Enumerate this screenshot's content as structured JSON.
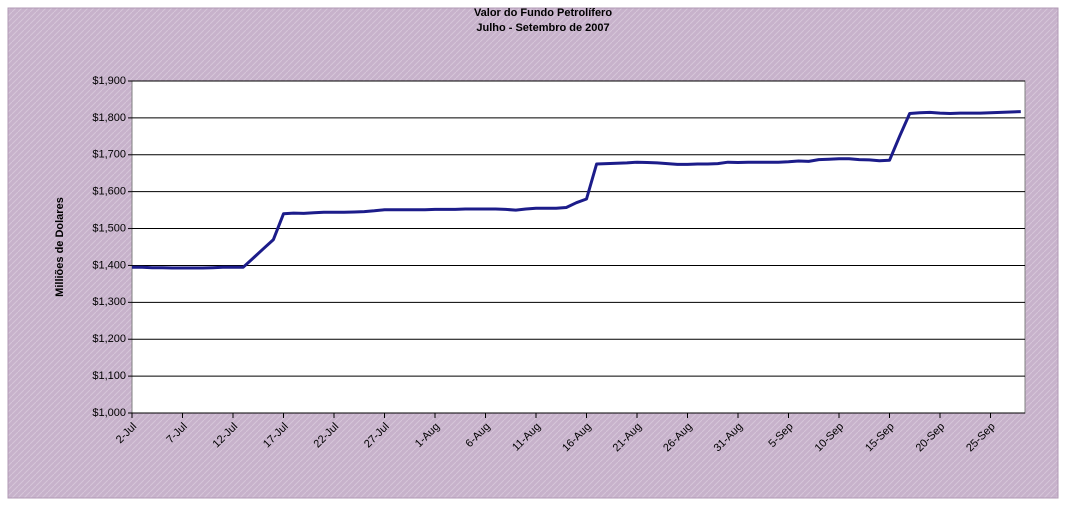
{
  "chart_data": {
    "type": "line",
    "title": "Valor do Fundo Petrolífero",
    "subtitle": "Julho - Setembro de 2007",
    "y_label": "Milliões de Dolares",
    "categories": [
      "2-Jul",
      null,
      null,
      null,
      null,
      "7-Jul",
      null,
      null,
      null,
      null,
      "12-Jul",
      null,
      null,
      null,
      null,
      "17-Jul",
      null,
      null,
      null,
      null,
      "22-Jul",
      null,
      null,
      null,
      null,
      "27-Jul",
      null,
      null,
      null,
      null,
      "1-Aug",
      null,
      null,
      null,
      null,
      "6-Aug",
      null,
      null,
      null,
      null,
      "11-Aug",
      null,
      null,
      null,
      null,
      "16-Aug",
      null,
      null,
      null,
      null,
      "21-Aug",
      null,
      null,
      null,
      null,
      "26-Aug",
      null,
      null,
      null,
      null,
      "31-Aug",
      null,
      null,
      null,
      null,
      "5-Sep",
      null,
      null,
      null,
      null,
      "10-Sep",
      null,
      null,
      null,
      null,
      "15-Sep",
      null,
      null,
      null,
      null,
      "20-Sep",
      null,
      null,
      null,
      null,
      "25-Sep",
      null,
      null,
      null
    ],
    "values": [
      1395,
      1395,
      1394,
      1394,
      1393,
      1393,
      1393,
      1393,
      1394,
      1395,
      1395,
      1395,
      1420,
      1445,
      1470,
      1540,
      1542,
      1541,
      1543,
      1544,
      1544,
      1544,
      1545,
      1546,
      1548,
      1551,
      1551,
      1551,
      1551,
      1551,
      1552,
      1552,
      1552,
      1553,
      1553,
      1553,
      1553,
      1552,
      1550,
      1553,
      1555,
      1555,
      1555,
      1557,
      1570,
      1580,
      1675,
      1676,
      1677,
      1678,
      1680,
      1679,
      1678,
      1676,
      1674,
      1674,
      1675,
      1675,
      1676,
      1680,
      1679,
      1680,
      1680,
      1680,
      1680,
      1681,
      1683,
      1682,
      1687,
      1688,
      1689,
      1689,
      1687,
      1686,
      1684,
      1685,
      1750,
      1812,
      1814,
      1815,
      1813,
      1812,
      1813,
      1813,
      1813,
      1814,
      1815,
      1816,
      1817
    ],
    "color": "#1c1c8a",
    "ylim": [
      1000,
      1900
    ],
    "yticks": [
      {
        "value": 1000,
        "label": "$1,000"
      },
      {
        "value": 1100,
        "label": "$1,100"
      },
      {
        "value": 1200,
        "label": "$1,200"
      },
      {
        "value": 1300,
        "label": "$1,300"
      },
      {
        "value": 1400,
        "label": "$1,400"
      },
      {
        "value": 1500,
        "label": "$1,500"
      },
      {
        "value": 1600,
        "label": "$1,600"
      },
      {
        "value": 1700,
        "label": "$1,700"
      },
      {
        "value": 1800,
        "label": "$1,800"
      },
      {
        "value": 1900,
        "label": "$1,900"
      }
    ],
    "grid": true
  }
}
